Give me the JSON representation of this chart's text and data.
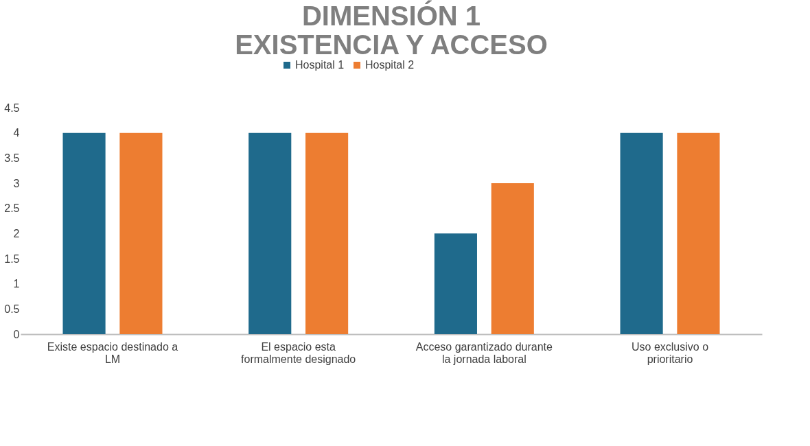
{
  "chart_data": {
    "type": "bar",
    "title": "DIMENSIÓN 1\nEXISTENCIA Y ACCESO",
    "categories": [
      "Existe espacio destinado a LM",
      "El espacio esta formalmente designado",
      "Acceso garantizado durante la jornada laboral",
      "Uso exclusivo o prioritario"
    ],
    "series": [
      {
        "name": "Hospital 1",
        "color": "#1f6a8c",
        "values": [
          4,
          4,
          2,
          4
        ]
      },
      {
        "name": "Hospital 2",
        "color": "#ed7d31",
        "values": [
          4,
          4,
          3,
          4
        ]
      }
    ],
    "ylim": [
      0,
      4.5
    ],
    "yticks": [
      0,
      0.5,
      1,
      1.5,
      2,
      2.5,
      3,
      3.5,
      4,
      4.5
    ],
    "grid": false,
    "legend": "top"
  }
}
